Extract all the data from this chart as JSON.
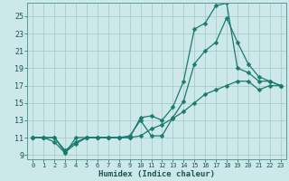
{
  "xlabel": "Humidex (Indice chaleur)",
  "background_color": "#cde8e8",
  "grid_color": "#a8cccc",
  "line_color": "#1a7a6e",
  "xlim": [
    -0.5,
    23.5
  ],
  "ylim": [
    8.5,
    26.5
  ],
  "xticks": [
    0,
    1,
    2,
    3,
    4,
    5,
    6,
    7,
    8,
    9,
    10,
    11,
    12,
    13,
    14,
    15,
    16,
    17,
    18,
    19,
    20,
    21,
    22,
    23
  ],
  "yticks": [
    9,
    11,
    13,
    15,
    17,
    19,
    21,
    23,
    25
  ],
  "curve1_x": [
    0,
    1,
    2,
    3,
    4,
    5,
    6,
    7,
    8,
    9,
    10,
    11,
    12,
    13,
    14,
    15,
    16,
    17,
    18,
    19,
    20,
    21,
    22,
    23
  ],
  "curve1_y": [
    11,
    11,
    10.5,
    9.2,
    11,
    11,
    11,
    11,
    11,
    11,
    13.3,
    13.5,
    13,
    14.5,
    17.5,
    23.5,
    24.2,
    26.2,
    26.5,
    19,
    18.5,
    17.5,
    17.5,
    17
  ],
  "curve2_x": [
    0,
    1,
    2,
    3,
    4,
    5,
    6,
    7,
    8,
    9,
    10,
    11,
    12,
    13,
    14,
    15,
    16,
    17,
    18,
    19,
    20,
    21,
    22,
    23
  ],
  "curve2_y": [
    11,
    11,
    11,
    9.3,
    10.3,
    11,
    11,
    11,
    11,
    11.2,
    13,
    11.2,
    11.2,
    13.3,
    15.2,
    19.5,
    21,
    22,
    24.8,
    22,
    19.5,
    18,
    17.5,
    17
  ],
  "curve3_x": [
    0,
    1,
    2,
    3,
    4,
    5,
    6,
    7,
    8,
    9,
    10,
    11,
    12,
    13,
    14,
    15,
    16,
    17,
    18,
    19,
    20,
    21,
    22,
    23
  ],
  "curve3_y": [
    11,
    11,
    11,
    9.5,
    10.5,
    11,
    11,
    11,
    11,
    11,
    11.2,
    12,
    12.5,
    13.2,
    14,
    15,
    16,
    16.5,
    17,
    17.5,
    17.5,
    16.5,
    17,
    17
  ]
}
